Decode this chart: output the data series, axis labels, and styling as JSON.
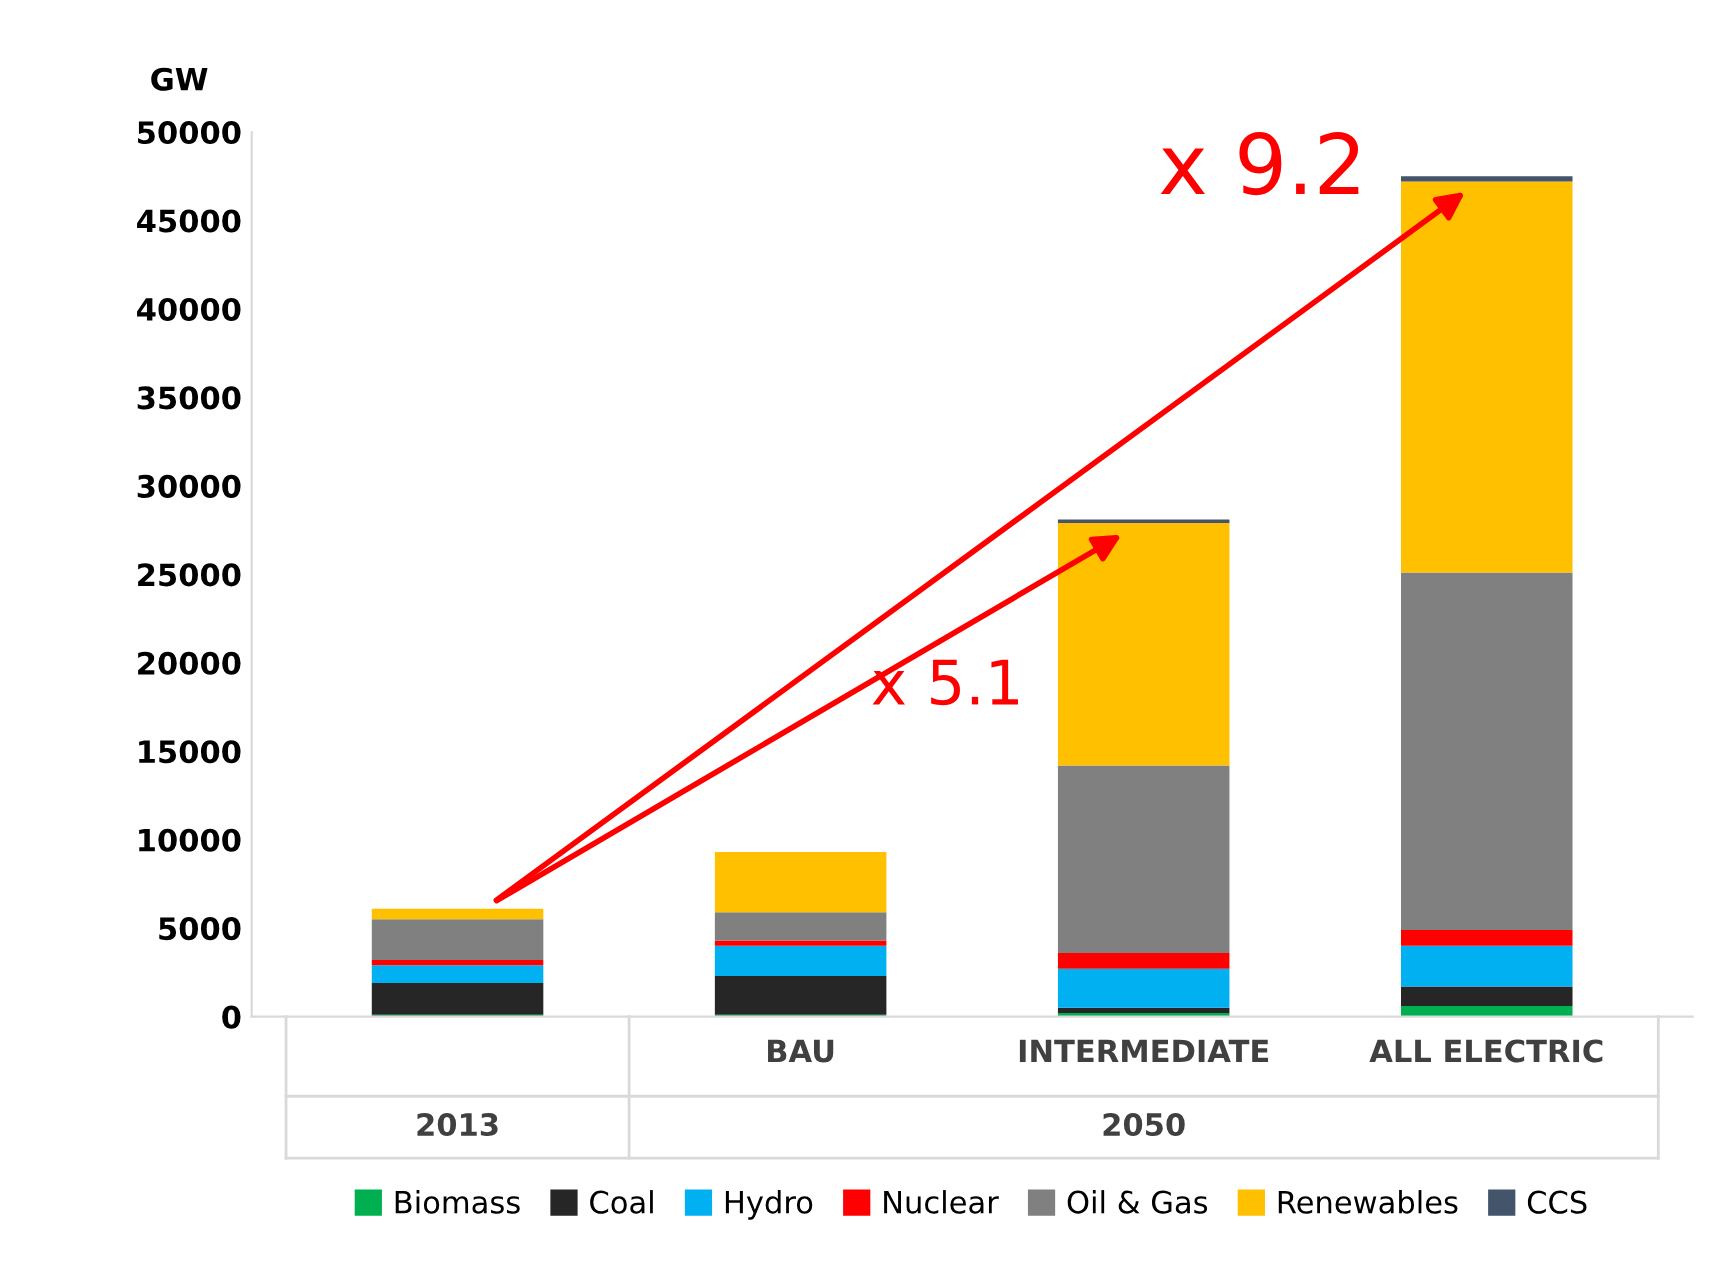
{
  "chart_data": {
    "type": "bar",
    "stacked": true,
    "ylabel": "GW",
    "categories": [
      null,
      "BAU",
      "INTERMEDIATE",
      "ALL ELECTRIC"
    ],
    "series": [
      {
        "name": "Biomass",
        "color": "#00b050",
        "values": [
          100,
          100,
          200,
          600
        ]
      },
      {
        "name": "Coal",
        "color": "#262626",
        "values": [
          1800,
          2200,
          300,
          1100
        ]
      },
      {
        "name": "Hydro",
        "color": "#00b0f0",
        "values": [
          1000,
          1700,
          2200,
          2300
        ]
      },
      {
        "name": "Nuclear",
        "color": "#ff0000",
        "values": [
          300,
          300,
          900,
          900
        ]
      },
      {
        "name": "Oil & Gas",
        "color": "#808080",
        "values": [
          2300,
          1600,
          10600,
          20200
        ]
      },
      {
        "name": "Renewables",
        "color": "#ffc000",
        "values": [
          600,
          3400,
          13700,
          22100
        ]
      },
      {
        "name": "CCS",
        "color": "#44546a",
        "values": [
          0,
          0,
          200,
          300
        ]
      }
    ],
    "ylim": [
      0,
      50000
    ],
    "yticks": [
      0,
      5000,
      10000,
      15000,
      20000,
      25000,
      30000,
      35000,
      40000,
      45000,
      50000
    ],
    "annotations": [
      "x 5.1",
      "x 9.2",
      "2013",
      "2050"
    ],
    "legend": "bottom",
    "grid": false
  }
}
